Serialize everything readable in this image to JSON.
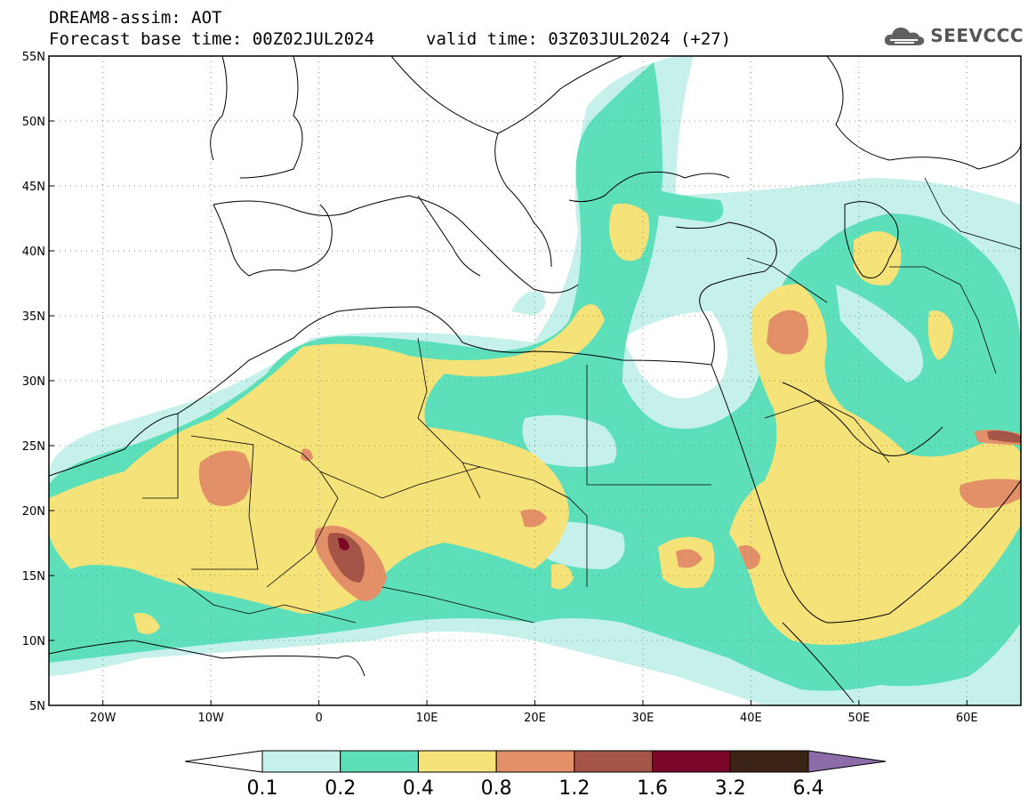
{
  "title": {
    "line1": "DREAM8-assim: AOT",
    "base_time": "Forecast base time: 00Z02JUL2024",
    "valid_time": "valid time: 03Z03JUL2024 (+27)"
  },
  "brand": {
    "name": "SEEVCCC",
    "icon": "cloud-logo-icon"
  },
  "map": {
    "lon_range": [
      -25,
      65
    ],
    "lat_range": [
      5,
      55
    ],
    "lat_ticks": [
      {
        "label": "55N"
      },
      {
        "label": "50N"
      },
      {
        "label": "45N"
      },
      {
        "label": "40N"
      },
      {
        "label": "35N"
      },
      {
        "label": "30N"
      },
      {
        "label": "25N"
      },
      {
        "label": "20N"
      },
      {
        "label": "15N"
      },
      {
        "label": "10N"
      },
      {
        "label": "5N"
      }
    ],
    "lon_ticks": [
      {
        "label": "20W"
      },
      {
        "label": "10W"
      },
      {
        "label": "0"
      },
      {
        "label": "10E"
      },
      {
        "label": "20E"
      },
      {
        "label": "30E"
      },
      {
        "label": "40E"
      },
      {
        "label": "50E"
      },
      {
        "label": "60E"
      }
    ]
  },
  "colorbar": {
    "colors": [
      "#ffffff",
      "#c5f1ea",
      "#5de0b9",
      "#f5e278",
      "#e38f68",
      "#a45548",
      "#7b0627",
      "#3b2316",
      "#8c6ba8"
    ],
    "labels": [
      "0.1",
      "0.2",
      "0.4",
      "0.8",
      "1.2",
      "1.6",
      "3.2",
      "6.4"
    ]
  }
}
